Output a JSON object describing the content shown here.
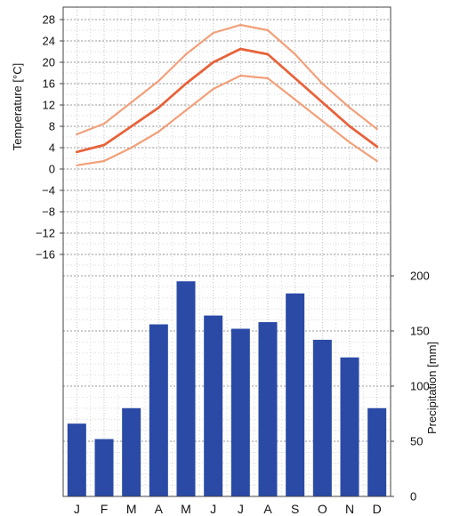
{
  "chart_data": [
    {
      "type": "line",
      "ylabel": "Temperature [°C]",
      "ylim": [
        -16,
        28
      ],
      "yticks": [
        28,
        24,
        20,
        16,
        12,
        8,
        4,
        0,
        -4,
        -8,
        -12,
        -16
      ],
      "categories": [
        "J",
        "F",
        "M",
        "A",
        "M",
        "J",
        "J",
        "A",
        "S",
        "O",
        "N",
        "D"
      ],
      "series": [
        {
          "role": "max",
          "values": [
            6.5,
            8.5,
            12.5,
            16.5,
            21.5,
            25.5,
            27,
            26,
            21.5,
            16,
            11.5,
            7.5
          ],
          "color": "#f2a07a"
        },
        {
          "role": "mean",
          "values": [
            3.2,
            4.5,
            8,
            11.5,
            16,
            20,
            22.5,
            21.5,
            17,
            12.5,
            8,
            4.2
          ],
          "color": "#e8623a"
        },
        {
          "role": "min",
          "values": [
            0.7,
            1.5,
            4,
            7,
            11,
            15,
            17.5,
            17,
            13,
            9,
            5,
            1.5
          ],
          "color": "#f2a07a"
        }
      ]
    },
    {
      "type": "bar",
      "ylabel": "Precipitation [mm]",
      "ylim": [
        0,
        200
      ],
      "yticks": [
        200,
        150,
        100,
        50,
        0
      ],
      "categories": [
        "J",
        "F",
        "M",
        "A",
        "M",
        "J",
        "J",
        "A",
        "S",
        "O",
        "N",
        "D"
      ],
      "values": [
        66,
        52,
        80,
        156,
        195,
        164,
        152,
        158,
        184,
        142,
        126,
        80
      ],
      "color": "#2a4aa6"
    }
  ]
}
